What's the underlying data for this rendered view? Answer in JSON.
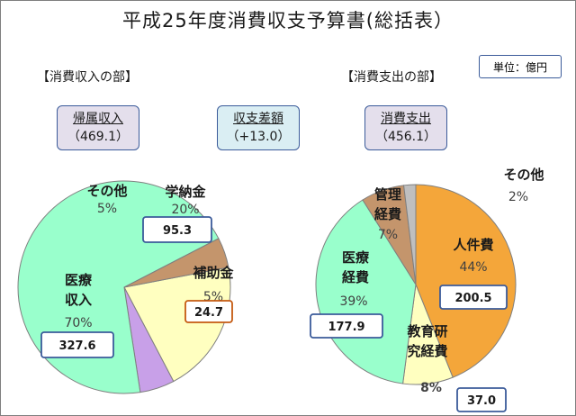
{
  "title": "平成25年度消費収支予算書(総括表）",
  "unit": "単位：億円",
  "sections": {
    "income": "【消費収入の部】",
    "expense": "【消費支出の部】"
  },
  "boxes": [
    {
      "label": "帰属収入",
      "amount": "（469.1）",
      "color": "#e4dfec"
    },
    {
      "label": "収支差額",
      "amount": "（+13.0）",
      "color": "#daeef3"
    },
    {
      "label": "消費支出",
      "amount": "（456.1）",
      "color": "#e4dfec"
    }
  ],
  "chart_data": [
    {
      "type": "pie",
      "title": "消費収入の部",
      "total": 469.1,
      "slices": [
        {
          "lines": [
            "学納金"
          ],
          "percent": "20%",
          "value": 95.3,
          "value_label": "95.3",
          "color": "#ffffc0"
        },
        {
          "lines": [
            "補助金"
          ],
          "percent": "5%",
          "value": 24.7,
          "value_label": "24.7",
          "color": "#c8a0e8"
        },
        {
          "lines": [
            "医療",
            "収入"
          ],
          "percent": "70%",
          "value": 327.6,
          "value_label": "327.6",
          "color": "#99ffcc"
        },
        {
          "lines": [
            "その他"
          ],
          "percent": "5%",
          "value": 21.5,
          "value_label": "",
          "color": "#c4956c"
        }
      ]
    },
    {
      "type": "pie",
      "title": "消費支出の部",
      "total": 456.1,
      "slices": [
        {
          "lines": [
            "人件費"
          ],
          "percent": "44%",
          "value": 200.5,
          "value_label": "200.5",
          "color": "#f4a63a"
        },
        {
          "lines": [
            "教育研",
            "究経費"
          ],
          "percent": "8%",
          "value": 37.0,
          "value_label": "37.0",
          "color": "#ffffc0"
        },
        {
          "lines": [
            "医療",
            "経費"
          ],
          "percent": "39%",
          "value": 177.9,
          "value_label": "177.9",
          "color": "#99ffcc"
        },
        {
          "lines": [
            "管理",
            "経費"
          ],
          "percent": "7%",
          "value": 31.9,
          "value_label": "",
          "color": "#c4956c"
        },
        {
          "lines": [
            "その他"
          ],
          "percent": "2%",
          "value": 8.8,
          "value_label": "",
          "color": "#bfbfbf"
        }
      ]
    }
  ]
}
